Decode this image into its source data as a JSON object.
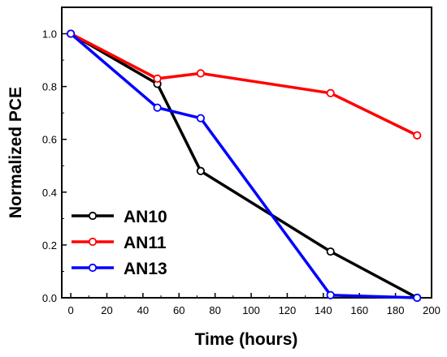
{
  "chart_data": {
    "type": "line",
    "title": "",
    "xlabel": "Time (hours)",
    "ylabel": "Normalized PCE",
    "xlim": [
      -5,
      200
    ],
    "ylim": [
      0,
      1.1
    ],
    "xticks": [
      0,
      20,
      40,
      60,
      80,
      100,
      120,
      140,
      160,
      180,
      200
    ],
    "yticks": [
      0.0,
      0.2,
      0.4,
      0.6,
      0.8,
      1.0
    ],
    "ytick_labels": [
      "0.0",
      "0.2",
      "0.4",
      "0.6",
      "0.8",
      "1.0"
    ],
    "grid": false,
    "legend": "bottom-left",
    "series": [
      {
        "name": "AN10",
        "color": "#000000",
        "x": [
          0,
          48,
          72,
          144,
          192
        ],
        "y": [
          1.0,
          0.81,
          0.48,
          0.175,
          0.0
        ]
      },
      {
        "name": "AN11",
        "color": "#ff0000",
        "x": [
          0,
          48,
          72,
          144,
          192
        ],
        "y": [
          1.0,
          0.83,
          0.85,
          0.775,
          0.615
        ]
      },
      {
        "name": "AN13",
        "color": "#0000ff",
        "x": [
          0,
          48,
          72,
          144,
          192
        ],
        "y": [
          1.0,
          0.72,
          0.68,
          0.01,
          0.0
        ]
      }
    ]
  }
}
